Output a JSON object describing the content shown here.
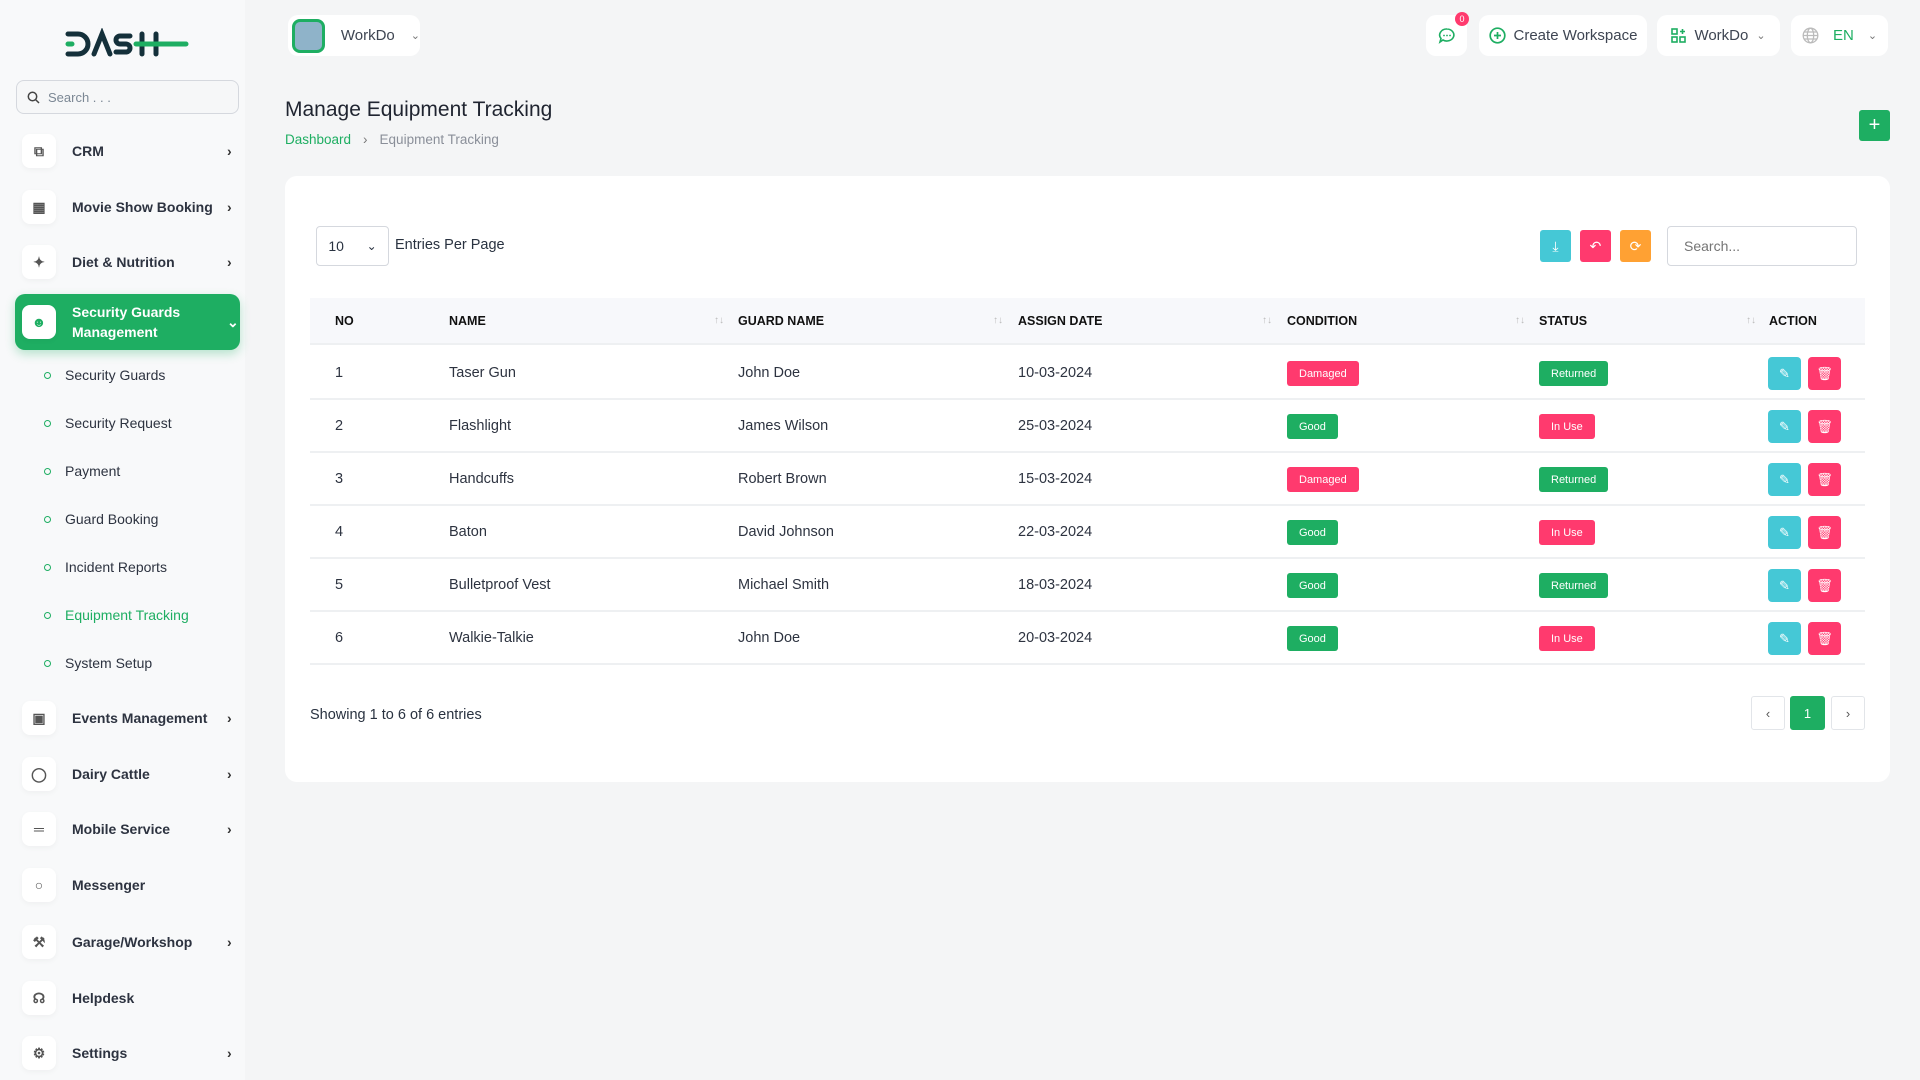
{
  "brand": {
    "logo_text": "DASH",
    "accent": "#1eae62",
    "danger": "#ff3a6e",
    "info": "#45c8d6",
    "warning": "#ffa133"
  },
  "sidebar": {
    "search_placeholder": "Search . . .",
    "items": [
      {
        "label": "CRM",
        "icon": "crm-icon",
        "chevron": true
      },
      {
        "label": "Movie Show Booking",
        "icon": "film-icon",
        "chevron": true
      },
      {
        "label": "Diet & Nutrition",
        "icon": "utensils-icon",
        "chevron": true
      },
      {
        "label": "Security Guards Management",
        "icon": "user-check-icon",
        "chevron": true,
        "active": true
      },
      {
        "label": "Events Management",
        "icon": "calendar-icon",
        "chevron": true
      },
      {
        "label": "Dairy Cattle",
        "icon": "bottle-icon",
        "chevron": true
      },
      {
        "label": "Mobile Service",
        "icon": "menu-lines-icon",
        "chevron": true
      },
      {
        "label": "Messenger",
        "icon": "chat-icon",
        "chevron": false
      },
      {
        "label": "Garage/Workshop",
        "icon": "wrench-icon",
        "chevron": true
      },
      {
        "label": "Helpdesk",
        "icon": "headphones-icon",
        "chevron": false
      },
      {
        "label": "Settings",
        "icon": "gear-icon",
        "chevron": true
      }
    ],
    "submenu": [
      "Security Guards",
      "Security Request",
      "Payment",
      "Guard Booking",
      "Incident Reports",
      "Equipment Tracking",
      "System Setup"
    ],
    "active_sub": "Equipment Tracking"
  },
  "header": {
    "workspace": "WorkDo",
    "notif_count": "0",
    "create_workspace": "Create Workspace",
    "workspace2": "WorkDo",
    "language": "EN"
  },
  "page": {
    "title": "Manage Equipment Tracking",
    "breadcrumb": [
      "Dashboard",
      "Equipment Tracking"
    ]
  },
  "table_controls": {
    "per_page": "10",
    "per_page_label": "Entries Per Page",
    "search_placeholder": "Search..."
  },
  "table": {
    "headers": [
      "NO",
      "NAME",
      "GUARD NAME",
      "ASSIGN DATE",
      "CONDITION",
      "STATUS",
      "ACTION"
    ],
    "rows": [
      {
        "no": "1",
        "name": "Taser Gun",
        "guard": "John Doe",
        "date": "10-03-2024",
        "condition": "Damaged",
        "status": "Returned"
      },
      {
        "no": "2",
        "name": "Flashlight",
        "guard": "James Wilson",
        "date": "25-03-2024",
        "condition": "Good",
        "status": "In Use"
      },
      {
        "no": "3",
        "name": "Handcuffs",
        "guard": "Robert Brown",
        "date": "15-03-2024",
        "condition": "Damaged",
        "status": "Returned"
      },
      {
        "no": "4",
        "name": "Baton",
        "guard": "David Johnson",
        "date": "22-03-2024",
        "condition": "Good",
        "status": "In Use"
      },
      {
        "no": "5",
        "name": "Bulletproof Vest",
        "guard": "Michael Smith",
        "date": "18-03-2024",
        "condition": "Good",
        "status": "Returned"
      },
      {
        "no": "6",
        "name": "Walkie-Talkie",
        "guard": "John Doe",
        "date": "20-03-2024",
        "condition": "Good",
        "status": "In Use"
      }
    ]
  },
  "footer": {
    "showing": "Showing 1 to 6 of 6 entries",
    "current_page": "1"
  }
}
